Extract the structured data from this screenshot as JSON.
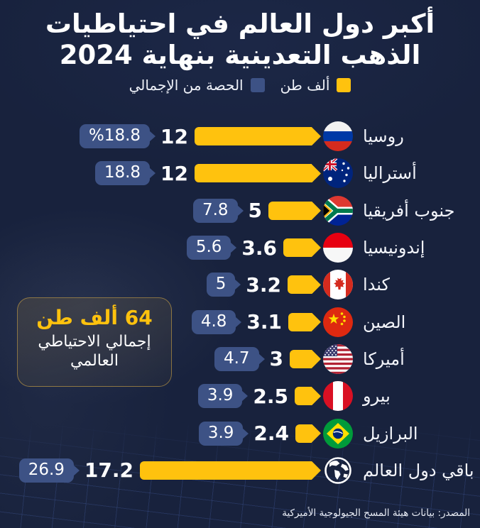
{
  "title": {
    "line1": "أكبر دول العالم في احتياطيات",
    "line2": "الذهب التعدينية بنهاية 2024"
  },
  "legend": {
    "tons": {
      "label": "ألف طن",
      "color": "#ffc20e"
    },
    "share": {
      "label": "الحصة من الإجمالي",
      "color": "#3d5285"
    }
  },
  "rows": [
    {
      "country": "روسيا",
      "flag": "russia",
      "tons": "12",
      "tons_value": 12,
      "share": "%18.8"
    },
    {
      "country": "أستراليا",
      "flag": "australia",
      "tons": "12",
      "tons_value": 12,
      "share": "18.8"
    },
    {
      "country": "جنوب أفريقيا",
      "flag": "south-africa",
      "tons": "5",
      "tons_value": 5,
      "share": "7.8"
    },
    {
      "country": "إندونيسيا",
      "flag": "indonesia",
      "tons": "3.6",
      "tons_value": 3.6,
      "share": "5.6"
    },
    {
      "country": "كندا",
      "flag": "canada",
      "tons": "3.2",
      "tons_value": 3.2,
      "share": "5"
    },
    {
      "country": "الصين",
      "flag": "china",
      "tons": "3.1",
      "tons_value": 3.1,
      "share": "4.8"
    },
    {
      "country": "أميركا",
      "flag": "usa",
      "tons": "3",
      "tons_value": 3,
      "share": "4.7"
    },
    {
      "country": "بيرو",
      "flag": "peru",
      "tons": "2.5",
      "tons_value": 2.5,
      "share": "3.9"
    },
    {
      "country": "البرازيل",
      "flag": "brazil",
      "tons": "2.4",
      "tons_value": 2.4,
      "share": "3.9"
    },
    {
      "country": "باقي دول العالم",
      "flag": "globe",
      "tons": "17.2",
      "tons_value": 17.2,
      "share": "26.9"
    }
  ],
  "callout": {
    "value": "64 ألف طن",
    "label": "إجمالي الاحتياطي العالمي"
  },
  "source": "المصدر: بيانات هيئة المسح الجيولوجية الأميركية",
  "colors": {
    "background": "#18223d",
    "bar_yellow": "#ffc20e",
    "badge_blue": "#3d5285",
    "text_white": "#ffffff"
  },
  "chart_data": {
    "type": "bar",
    "title": "أكبر دول العالم في احتياطيات الذهب التعدينية بنهاية 2024",
    "orientation": "horizontal",
    "categories": [
      "روسيا",
      "أستراليا",
      "جنوب أفريقيا",
      "إندونيسيا",
      "كندا",
      "الصين",
      "أميركا",
      "بيرو",
      "البرازيل",
      "باقي دول العالم"
    ],
    "series": [
      {
        "name": "ألف طن",
        "values": [
          12,
          12,
          5,
          3.6,
          3.2,
          3.1,
          3,
          2.5,
          2.4,
          17.2
        ]
      },
      {
        "name": "الحصة من الإجمالي",
        "values": [
          18.8,
          18.8,
          7.8,
          5.6,
          5,
          4.8,
          4.7,
          3.9,
          3.9,
          26.9
        ],
        "unit": "%"
      }
    ],
    "annotations": [
      "64 ألف طن إجمالي الاحتياطي العالمي"
    ],
    "legend_position": "top",
    "grid": false,
    "source": "المصدر: بيانات هيئة المسح الجيولوجية الأميركية"
  }
}
